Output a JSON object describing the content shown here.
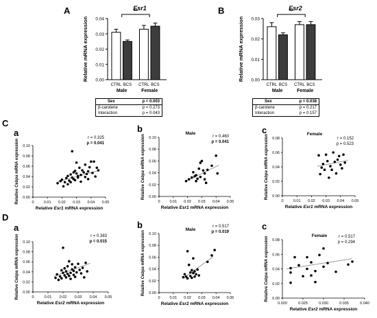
{
  "panels": {
    "A": "A",
    "B": "B",
    "C": "C",
    "D": "D",
    "Ca": "a",
    "Cb": "b",
    "Cc": "c",
    "Da": "a",
    "Db": "b",
    "Dc": "c"
  },
  "chart_data": [
    {
      "id": "A",
      "type": "bar",
      "title": "Esr1",
      "ylabel": "Relative mRNA expression",
      "ylim": [
        0,
        0.04
      ],
      "yticks": [
        "0.00",
        "0.01",
        "0.02",
        "0.03",
        "0.04"
      ],
      "categories": [
        "CTRL",
        "BCS",
        "CTRL",
        "BCS"
      ],
      "groups": [
        "Male",
        "Female"
      ],
      "values": [
        0.031,
        0.025,
        0.033,
        0.035
      ],
      "errors": [
        0.002,
        0.001,
        0.0025,
        0.002
      ],
      "bar_colors": [
        "#ffffff",
        "#3d3d3d",
        "#ffffff",
        "#3d3d3d"
      ],
      "significance": "**",
      "stats": [
        {
          "label": "Sex",
          "value": "p = 0.003",
          "bold": true
        },
        {
          "label": "β-carotene",
          "value": "p = 0.273",
          "bold": false
        },
        {
          "label": "Interaction",
          "value": "p = 0.043",
          "bold": false
        }
      ]
    },
    {
      "id": "B",
      "type": "bar",
      "title": "Esr2",
      "ylabel": "Relative mRNA expression",
      "ylim": [
        0,
        0.03
      ],
      "yticks": [
        "0.00",
        "0.01",
        "0.02",
        "0.03"
      ],
      "categories": [
        "CTRL",
        "BCS",
        "CTRL",
        "BCS"
      ],
      "groups": [
        "Male",
        "Female"
      ],
      "values": [
        0.026,
        0.022,
        0.027,
        0.027
      ],
      "errors": [
        0.002,
        0.001,
        0.0015,
        0.0015
      ],
      "bar_colors": [
        "#ffffff",
        "#3d3d3d",
        "#ffffff",
        "#3d3d3d"
      ],
      "significance": "**",
      "stats": [
        {
          "label": "Sex",
          "value": "p = 0.038",
          "bold": true
        },
        {
          "label": "β-carotene",
          "value": "p = 0.217",
          "bold": false
        },
        {
          "label": "Interaction",
          "value": "p = 0.157",
          "bold": false
        }
      ]
    },
    {
      "id": "Ca",
      "type": "scatter",
      "title": "",
      "xlabel_pre": "Relative ",
      "xlabel_gene": "Esr1",
      "xlabel_post": " mRNA expression",
      "ylabel_pre": "Relative ",
      "ylabel_gene": "Cebpa",
      "ylabel_post": " mRNA expression",
      "xlim": [
        0,
        0.05
      ],
      "ylim": [
        0,
        0.1
      ],
      "xticks": [
        "0",
        "0.01",
        "0.02",
        "0.03",
        "0.04",
        "0.05"
      ],
      "yticks": [
        "0.00",
        "0.02",
        "0.04",
        "0.06",
        "0.08",
        "0.10"
      ],
      "r": "r = 0.325",
      "p": "p = 0.041",
      "p_bold": true,
      "trend": [
        [
          0.017,
          0.03
        ],
        [
          0.046,
          0.052
        ]
      ],
      "points": [
        [
          0.017,
          0.027
        ],
        [
          0.019,
          0.031
        ],
        [
          0.02,
          0.034
        ],
        [
          0.021,
          0.021
        ],
        [
          0.022,
          0.029
        ],
        [
          0.023,
          0.037
        ],
        [
          0.024,
          0.041
        ],
        [
          0.024,
          0.025
        ],
        [
          0.025,
          0.032
        ],
        [
          0.026,
          0.044
        ],
        [
          0.026,
          0.029
        ],
        [
          0.027,
          0.038
        ],
        [
          0.027,
          0.089
        ],
        [
          0.028,
          0.035
        ],
        [
          0.028,
          0.048
        ],
        [
          0.029,
          0.033
        ],
        [
          0.029,
          0.051
        ],
        [
          0.03,
          0.046
        ],
        [
          0.03,
          0.067
        ],
        [
          0.031,
          0.038
        ],
        [
          0.031,
          0.041
        ],
        [
          0.032,
          0.057
        ],
        [
          0.033,
          0.043
        ],
        [
          0.033,
          0.03
        ],
        [
          0.034,
          0.052
        ],
        [
          0.035,
          0.048
        ],
        [
          0.036,
          0.039
        ],
        [
          0.036,
          0.063
        ],
        [
          0.037,
          0.045
        ],
        [
          0.038,
          0.05
        ],
        [
          0.038,
          0.035
        ],
        [
          0.039,
          0.058
        ],
        [
          0.04,
          0.069
        ],
        [
          0.041,
          0.047
        ],
        [
          0.042,
          0.069
        ],
        [
          0.043,
          0.04
        ],
        [
          0.044,
          0.057
        ],
        [
          0.045,
          0.052
        ]
      ]
    },
    {
      "id": "Cb",
      "type": "scatter",
      "title": "Male",
      "xlabel_pre": "Relative ",
      "xlabel_gene": "Esr1",
      "xlabel_post": " mRNA expression",
      "ylabel_pre": "Relative ",
      "ylabel_gene": "Cebpa",
      "ylabel_post": " mRNA expression",
      "xlim": [
        0,
        0.05
      ],
      "ylim": [
        0,
        0.1
      ],
      "xticks": [
        "0",
        "0.01",
        "0.02",
        "0.03",
        "0.04",
        "0.05"
      ],
      "yticks": [
        "0.00",
        "0.02",
        "0.04",
        "0.06",
        "0.08",
        "0.10"
      ],
      "r": "r = 0.460",
      "p": "p = 0.041",
      "p_bold": true,
      "trend": [
        [
          0.019,
          0.026
        ],
        [
          0.042,
          0.053
        ]
      ],
      "points": [
        [
          0.019,
          0.026
        ],
        [
          0.021,
          0.029
        ],
        [
          0.023,
          0.032
        ],
        [
          0.024,
          0.041
        ],
        [
          0.025,
          0.034
        ],
        [
          0.026,
          0.026
        ],
        [
          0.026,
          0.036
        ],
        [
          0.027,
          0.03
        ],
        [
          0.028,
          0.047
        ],
        [
          0.029,
          0.057
        ],
        [
          0.029,
          0.033
        ],
        [
          0.03,
          0.06
        ],
        [
          0.031,
          0.044
        ],
        [
          0.032,
          0.039
        ],
        [
          0.032,
          0.029
        ],
        [
          0.033,
          0.023
        ],
        [
          0.034,
          0.045
        ],
        [
          0.037,
          0.052
        ],
        [
          0.04,
          0.069
        ],
        [
          0.041,
          0.039
        ]
      ]
    },
    {
      "id": "Cc",
      "type": "scatter",
      "title": "Female",
      "xlabel_pre": "Relative ",
      "xlabel_gene": "Esr1",
      "xlabel_post": " mRNA expression",
      "ylabel_pre": "Relative ",
      "ylabel_gene": "Cebpa",
      "ylabel_post": " mRNA expression",
      "xlim": [
        0,
        0.05
      ],
      "ylim": [
        0,
        0.08
      ],
      "xticks": [
        "0",
        "0.01",
        "0.02",
        "0.03",
        "0.04",
        "0.05"
      ],
      "yticks": [
        "0.00",
        "0.02",
        "0.04",
        "0.06",
        "0.08"
      ],
      "r": "r = 0.152",
      "p": "p = 0.523",
      "p_bold": false,
      "trend": [
        [
          0.024,
          0.041
        ],
        [
          0.045,
          0.049
        ]
      ],
      "points": [
        [
          0.025,
          0.056
        ],
        [
          0.026,
          0.03
        ],
        [
          0.027,
          0.039
        ],
        [
          0.028,
          0.044
        ],
        [
          0.029,
          0.036
        ],
        [
          0.03,
          0.057
        ],
        [
          0.031,
          0.048
        ],
        [
          0.032,
          0.025
        ],
        [
          0.033,
          0.041
        ],
        [
          0.034,
          0.036
        ],
        [
          0.035,
          0.06
        ],
        [
          0.036,
          0.047
        ],
        [
          0.037,
          0.031
        ],
        [
          0.038,
          0.05
        ],
        [
          0.039,
          0.055
        ],
        [
          0.04,
          0.043
        ],
        [
          0.041,
          0.038
        ],
        [
          0.042,
          0.057
        ],
        [
          0.043,
          0.046
        ]
      ]
    },
    {
      "id": "Da",
      "type": "scatter",
      "title": "",
      "xlabel_pre": "Relative ",
      "xlabel_gene": "Esr2",
      "xlabel_post": " mRNA expression",
      "ylabel_pre": "Relative ",
      "ylabel_gene": "Cebpa",
      "ylabel_post": " mRNA expression",
      "xlim": [
        0,
        0.05
      ],
      "ylim": [
        0,
        0.1
      ],
      "xticks": [
        "0",
        "0.01",
        "0.02",
        "0.03",
        "0.04",
        "0.05"
      ],
      "yticks": [
        "0.00",
        "0.02",
        "0.04",
        "0.06",
        "0.08",
        "0.10"
      ],
      "r": "r = 0.383",
      "p": "p = 0.015",
      "p_bold": true,
      "trend": [
        [
          0.014,
          0.031
        ],
        [
          0.038,
          0.057
        ]
      ],
      "points": [
        [
          0.015,
          0.028
        ],
        [
          0.016,
          0.035
        ],
        [
          0.017,
          0.024
        ],
        [
          0.018,
          0.031
        ],
        [
          0.019,
          0.043
        ],
        [
          0.019,
          0.027
        ],
        [
          0.02,
          0.038
        ],
        [
          0.02,
          0.088
        ],
        [
          0.021,
          0.033
        ],
        [
          0.021,
          0.047
        ],
        [
          0.022,
          0.029
        ],
        [
          0.022,
          0.041
        ],
        [
          0.023,
          0.036
        ],
        [
          0.023,
          0.051
        ],
        [
          0.024,
          0.032
        ],
        [
          0.024,
          0.061
        ],
        [
          0.025,
          0.038
        ],
        [
          0.025,
          0.026
        ],
        [
          0.026,
          0.045
        ],
        [
          0.026,
          0.055
        ],
        [
          0.027,
          0.034
        ],
        [
          0.027,
          0.042
        ],
        [
          0.028,
          0.049
        ],
        [
          0.028,
          0.03
        ],
        [
          0.029,
          0.039
        ],
        [
          0.03,
          0.056
        ],
        [
          0.031,
          0.044
        ],
        [
          0.032,
          0.037
        ],
        [
          0.033,
          0.048
        ],
        [
          0.034,
          0.029
        ],
        [
          0.035,
          0.058
        ],
        [
          0.036,
          0.041
        ]
      ]
    },
    {
      "id": "Db",
      "type": "scatter",
      "title": "Male",
      "xlabel_pre": "Relative ",
      "xlabel_gene": "Esr2",
      "xlabel_post": " mRNA expression",
      "ylabel_pre": "Relative ",
      "ylabel_gene": "Cebpa",
      "ylabel_post": " mRNA expression",
      "xlim": [
        0,
        0.05
      ],
      "ylim": [
        0,
        0.1
      ],
      "xticks": [
        "0",
        "0.01",
        "0.02",
        "0.03",
        "0.04",
        "0.05"
      ],
      "yticks": [
        "0.00",
        "0.02",
        "0.04",
        "0.06",
        "0.08",
        "0.10"
      ],
      "r": "r = 0.517",
      "p": "p = 0.019",
      "p_bold": true,
      "trend": [
        [
          0.017,
          0.024
        ],
        [
          0.038,
          0.061
        ]
      ],
      "points": [
        [
          0.017,
          0.026
        ],
        [
          0.018,
          0.031
        ],
        [
          0.019,
          0.027
        ],
        [
          0.02,
          0.024
        ],
        [
          0.02,
          0.07
        ],
        [
          0.021,
          0.047
        ],
        [
          0.022,
          0.034
        ],
        [
          0.022,
          0.028
        ],
        [
          0.023,
          0.038
        ],
        [
          0.023,
          0.025
        ],
        [
          0.024,
          0.033
        ],
        [
          0.024,
          0.058
        ],
        [
          0.025,
          0.036
        ],
        [
          0.025,
          0.027
        ],
        [
          0.026,
          0.031
        ],
        [
          0.027,
          0.039
        ],
        [
          0.028,
          0.029
        ],
        [
          0.034,
          0.052
        ],
        [
          0.037,
          0.063
        ],
        [
          0.039,
          0.072
        ]
      ]
    },
    {
      "id": "Dc",
      "type": "scatter",
      "title": "Female",
      "xlabel_pre": "Relative ",
      "xlabel_gene": "Esr2",
      "xlabel_post": " mRNA expression",
      "ylabel_pre": "Relative ",
      "ylabel_gene": "Cebpa",
      "ylabel_post": " mRNA expression",
      "xlim": [
        0.02,
        0.04
      ],
      "ylim": [
        0,
        0.08
      ],
      "xticks": [
        "0.020",
        "0.025",
        "0.030",
        "0.035",
        "0.040"
      ],
      "yticks": [
        "0.00",
        "0.02",
        "0.04",
        "0.06",
        "0.08"
      ],
      "r": "r = 0.517",
      "p": "p = 0.294",
      "p_bold": false,
      "trend": [
        [
          0.021,
          0.04
        ],
        [
          0.037,
          0.054
        ]
      ],
      "points": [
        [
          0.022,
          0.021
        ],
        [
          0.022,
          0.041
        ],
        [
          0.022,
          0.035
        ],
        [
          0.023,
          0.056
        ],
        [
          0.024,
          0.045
        ],
        [
          0.025,
          0.03
        ],
        [
          0.026,
          0.04
        ],
        [
          0.026,
          0.056
        ],
        [
          0.027,
          0.031
        ],
        [
          0.027,
          0.049
        ],
        [
          0.028,
          0.022
        ],
        [
          0.028,
          0.037
        ],
        [
          0.029,
          0.059
        ],
        [
          0.03,
          0.043
        ],
        [
          0.03,
          0.068
        ],
        [
          0.031,
          0.048
        ],
        [
          0.033,
          0.036
        ],
        [
          0.036,
          0.046
        ],
        [
          0.037,
          0.05
        ]
      ]
    }
  ]
}
